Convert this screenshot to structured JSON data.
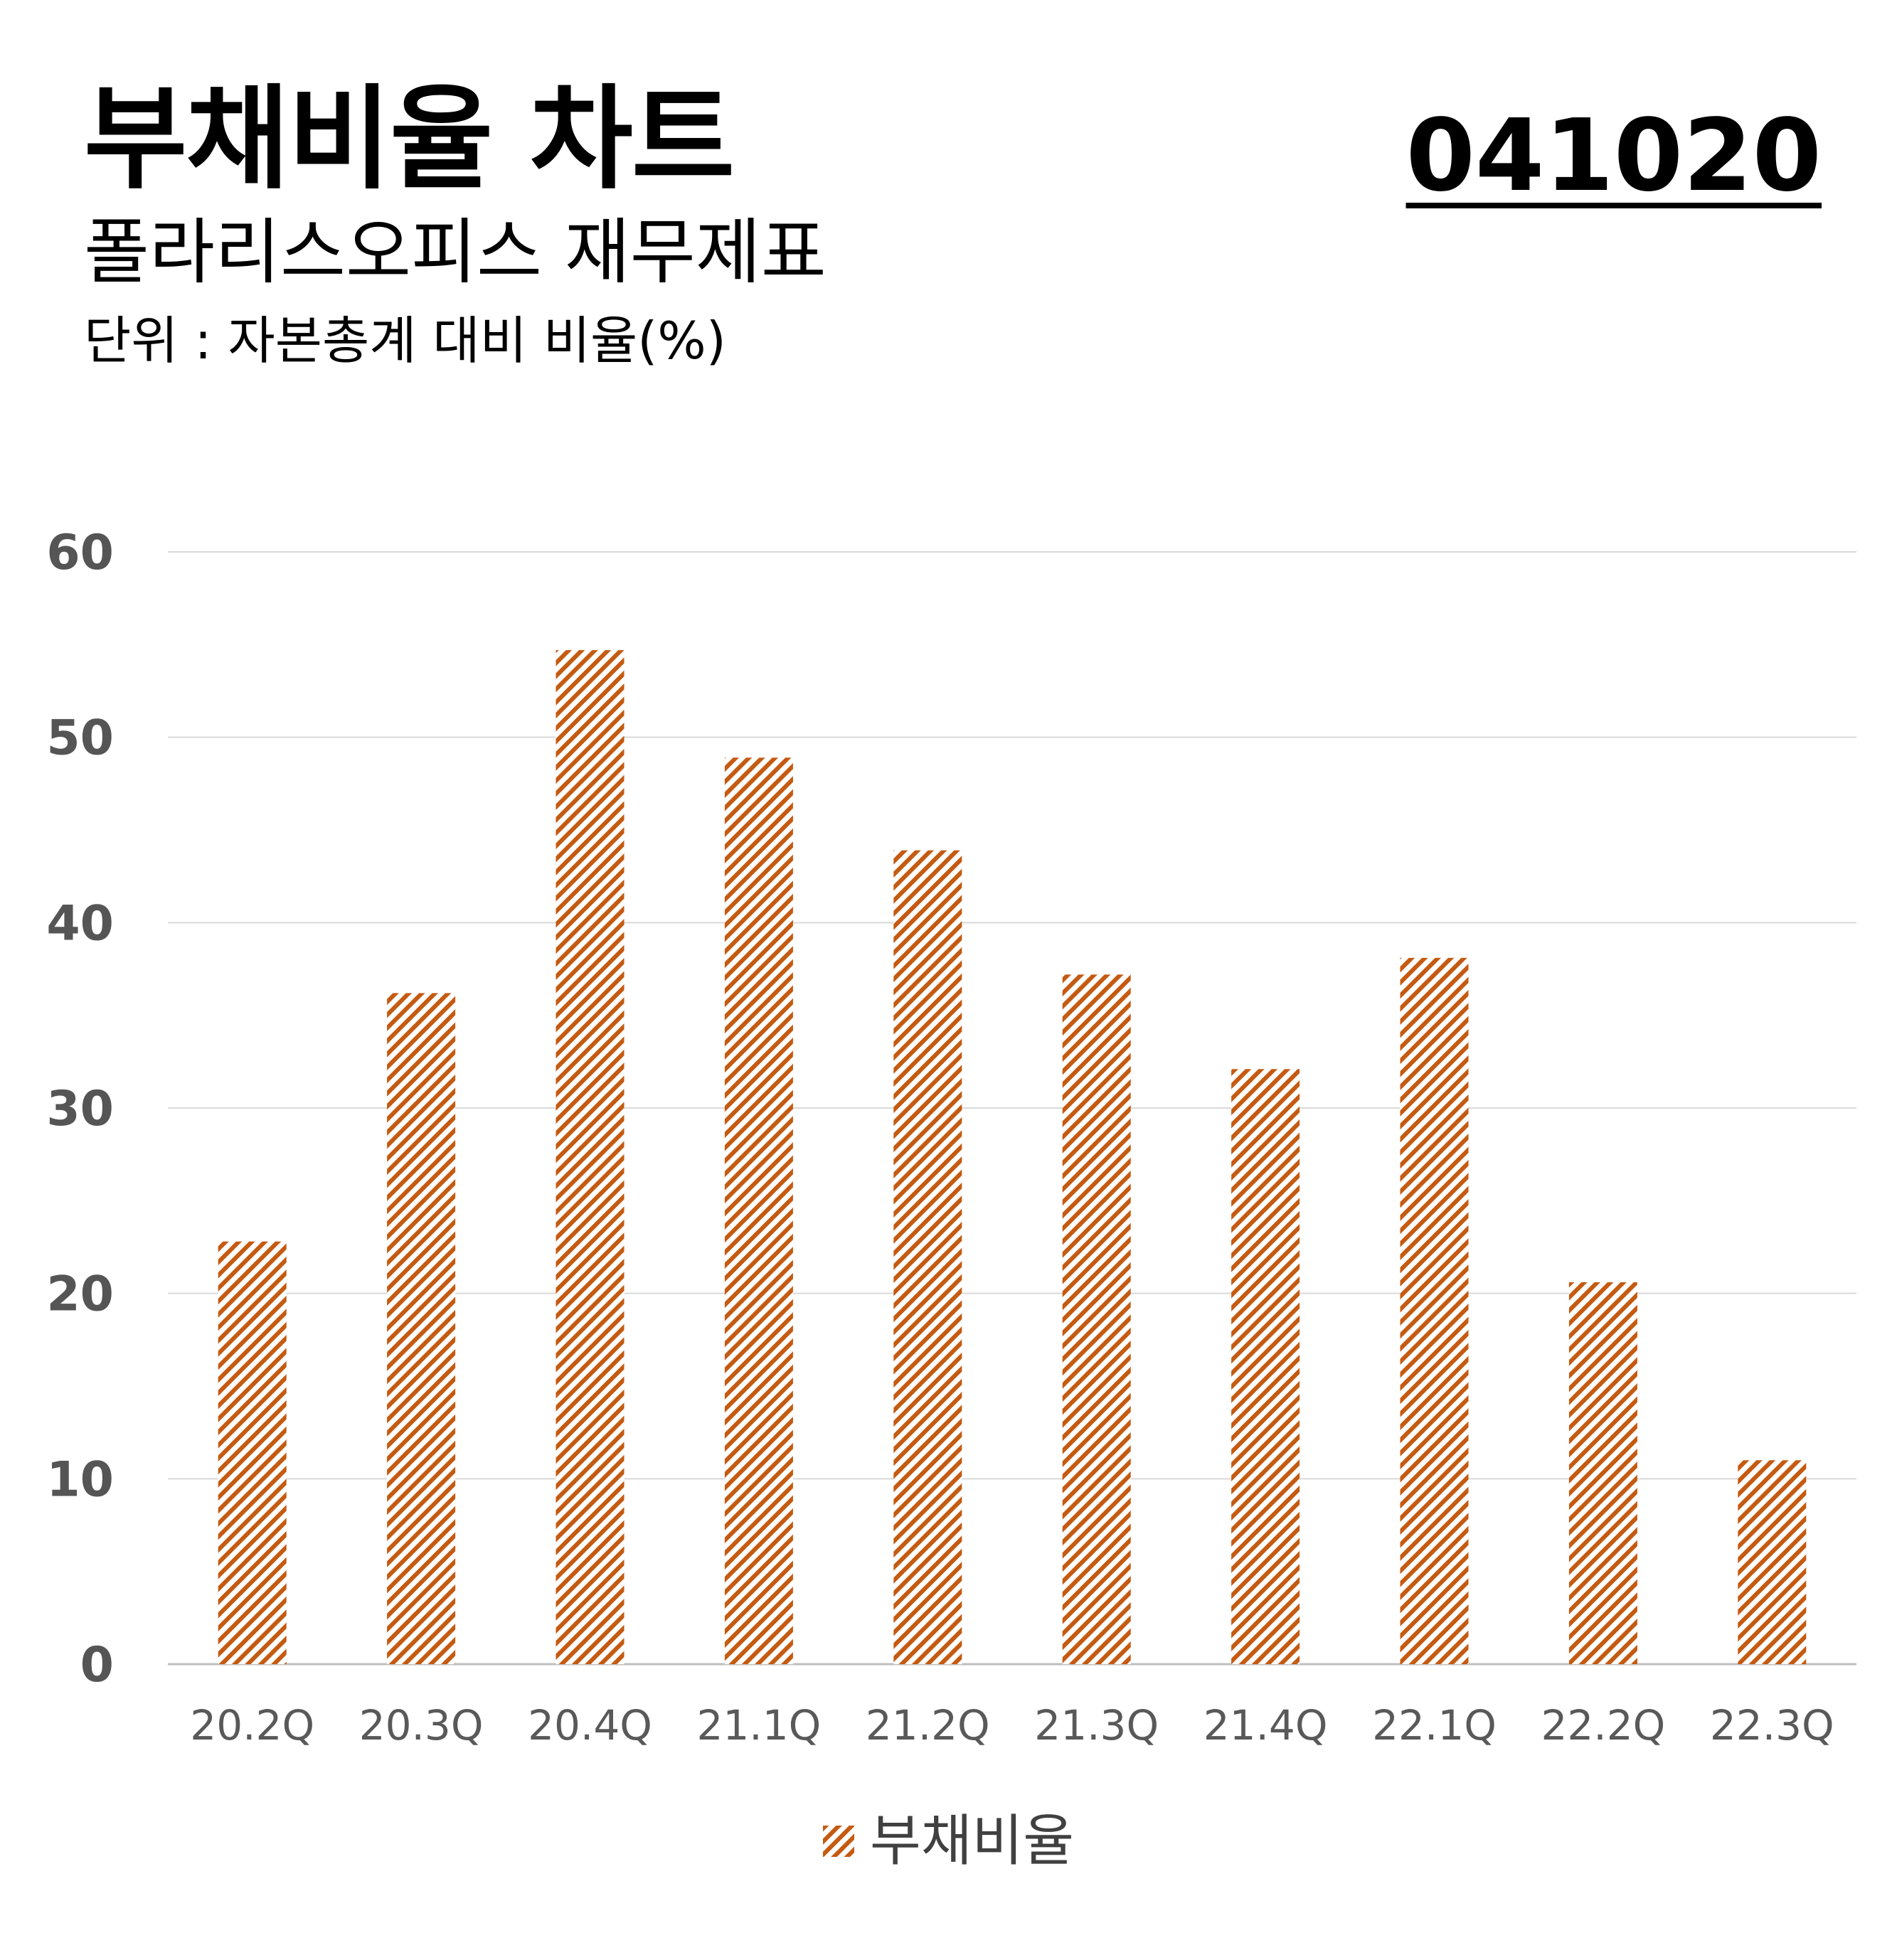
{
  "header": {
    "title": "부채비율 차트",
    "code": "041020",
    "subtitle": "폴라리스오피스 재무제표",
    "unit": "단위 : 자본총계 대비 비율(%)"
  },
  "colors": {
    "bar": "#C55A11",
    "grid": "#D9D9D9",
    "axis_text": "#595959"
  },
  "chart_data": {
    "type": "bar",
    "categories": [
      "20.2Q",
      "20.3Q",
      "20.4Q",
      "21.1Q",
      "21.2Q",
      "21.3Q",
      "21.4Q",
      "22.1Q",
      "22.2Q",
      "22.3Q"
    ],
    "series": [
      {
        "name": "부채비율",
        "values": [
          22.8,
          36.2,
          54.7,
          48.9,
          43.9,
          37.2,
          32.1,
          38.1,
          20.6,
          11.0
        ]
      }
    ],
    "ylim": [
      0,
      60
    ],
    "yticks": [
      0,
      10,
      20,
      30,
      40,
      50,
      60
    ],
    "grid": true,
    "legend": "bottom",
    "bar_fill": "diagonal-hatch"
  }
}
